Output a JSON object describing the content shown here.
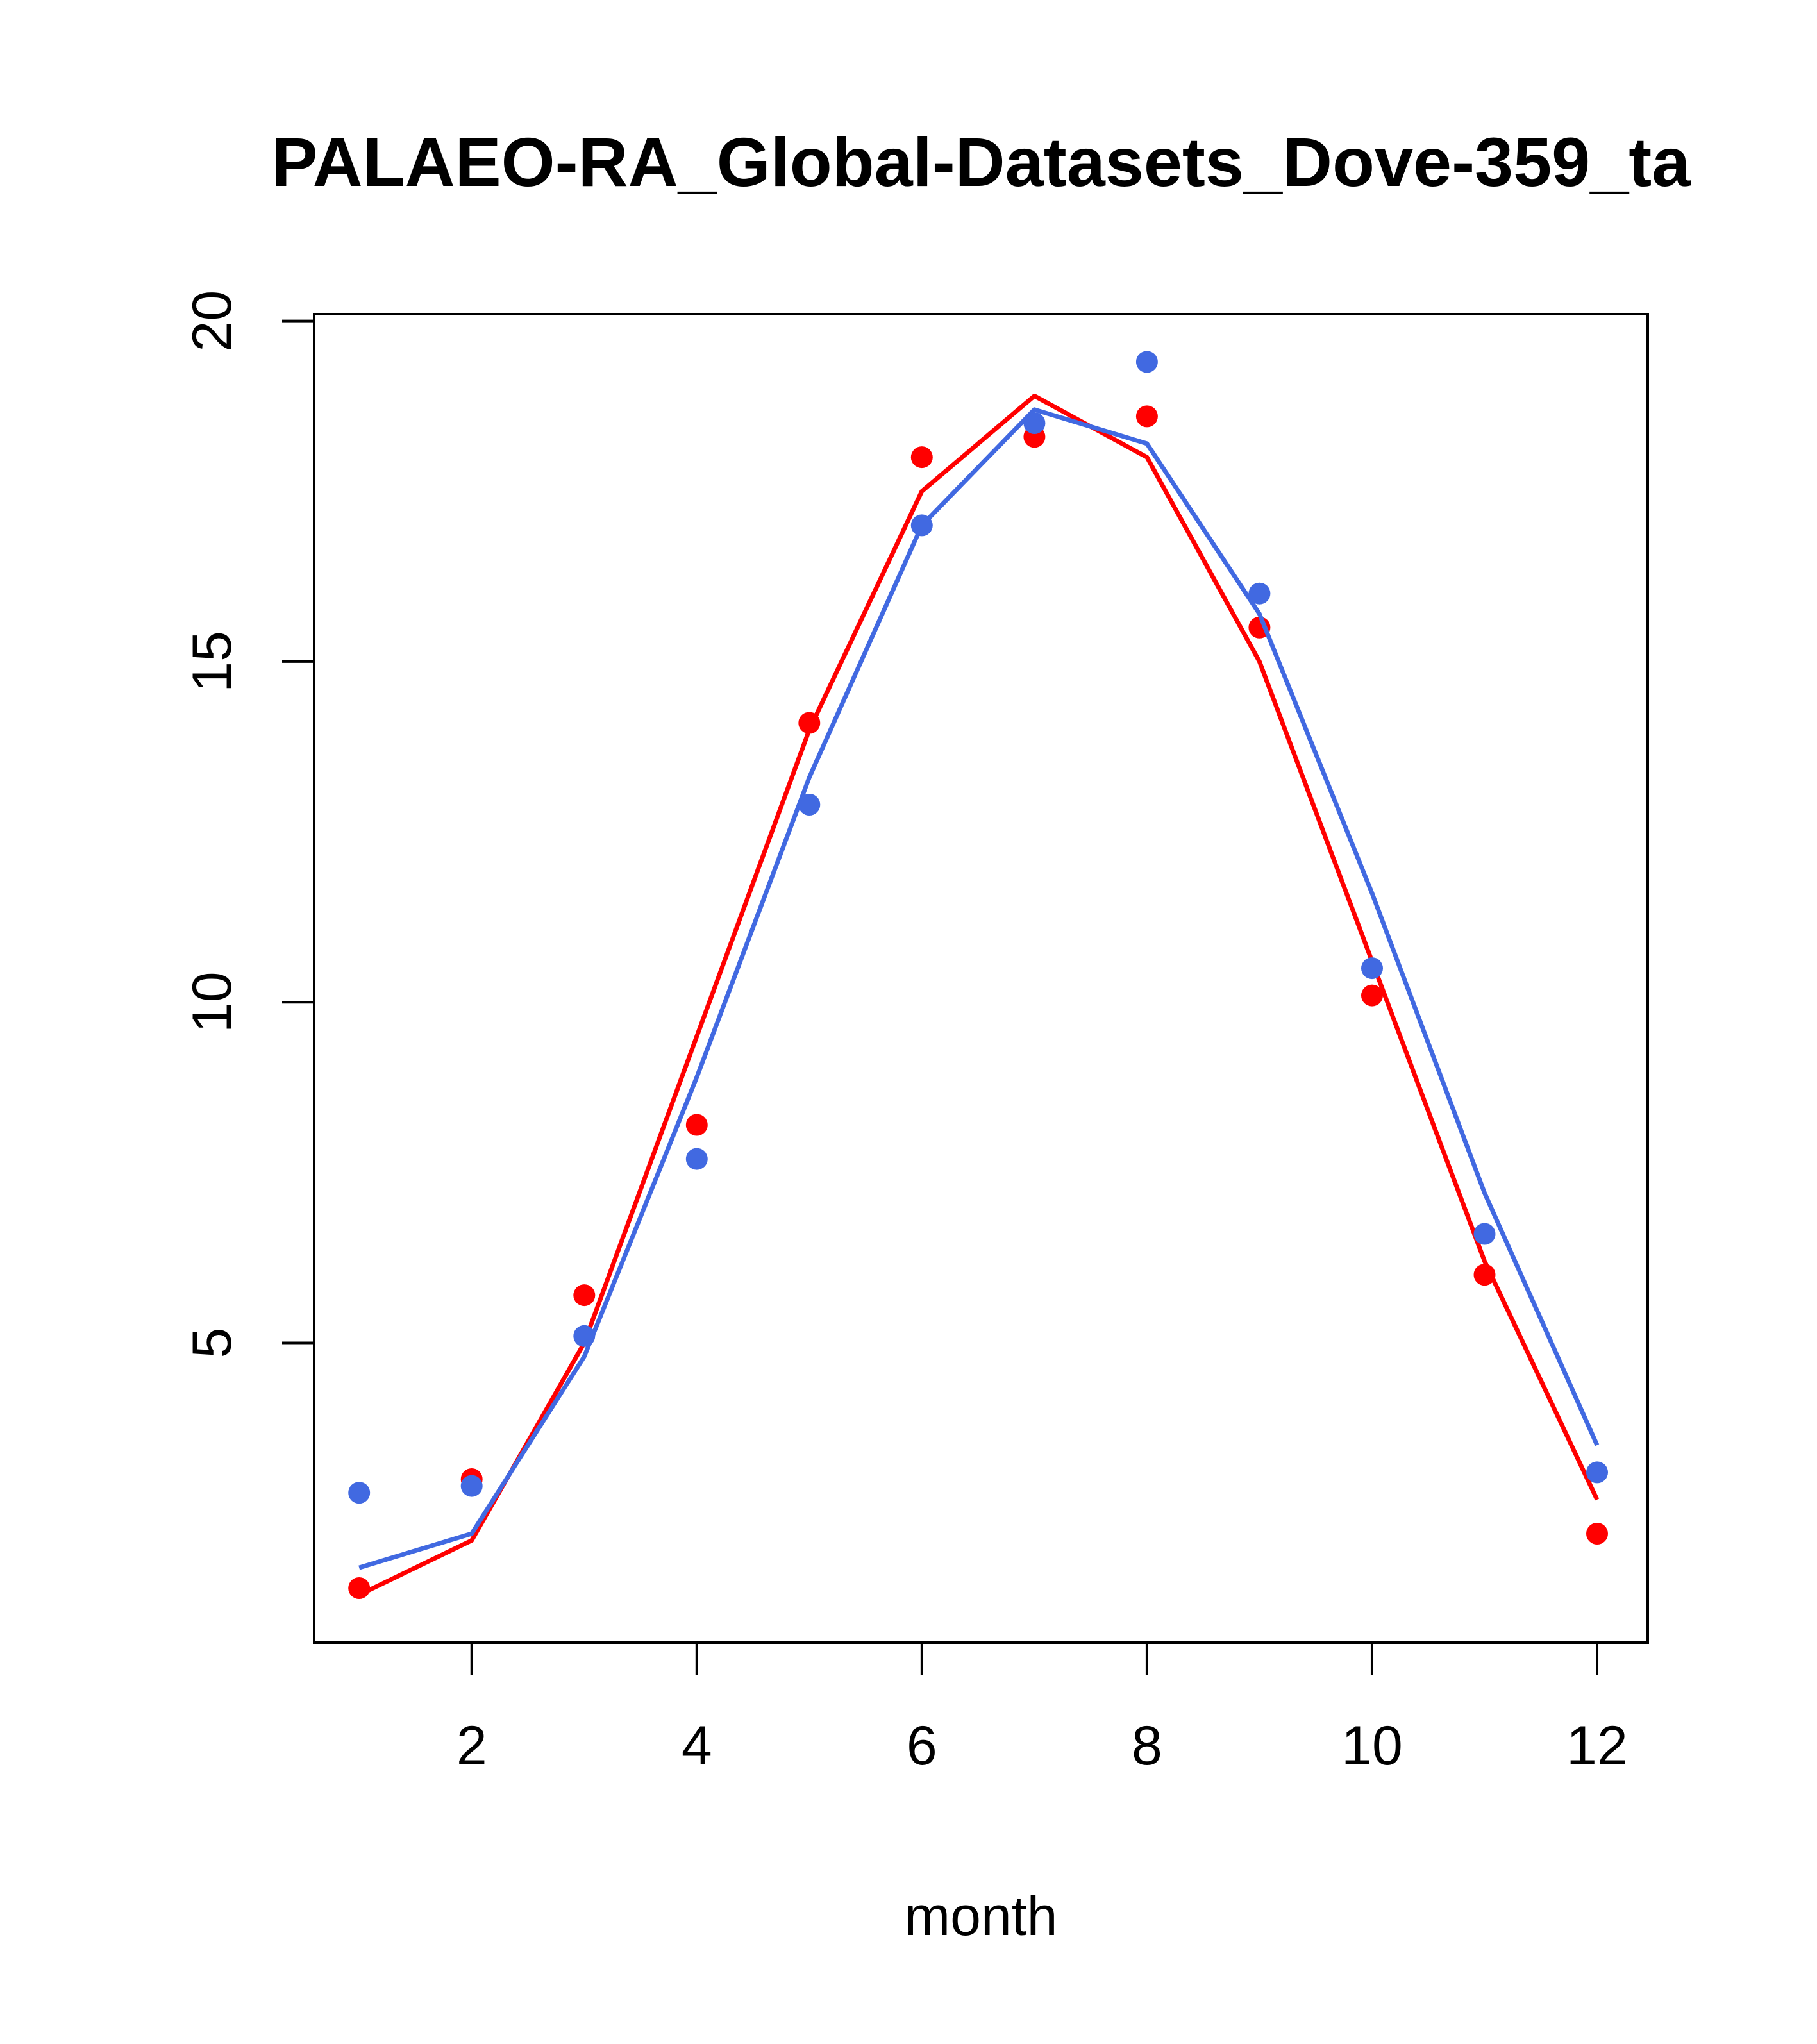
{
  "chart_data": {
    "type": "line",
    "title": "PALAEO-RA_Global-Datasets_Dove-359_ta",
    "xlabel": "month",
    "ylabel": "",
    "xlim": [
      0.6,
      12.45
    ],
    "ylim": [
      0.6,
      20.1
    ],
    "x_ticks": [
      2,
      4,
      6,
      8,
      10,
      12
    ],
    "y_ticks": [
      5,
      10,
      15,
      20
    ],
    "grid": false,
    "legend": "none",
    "x": [
      1,
      2,
      3,
      4,
      5,
      6,
      7,
      8,
      9,
      10,
      11,
      12
    ],
    "series": [
      {
        "color": "#ff0000",
        "line": [
          1.3,
          2.1,
          5.0,
          9.5,
          14.0,
          17.5,
          18.9,
          18.0,
          15.0,
          10.6,
          6.2,
          2.7
        ],
        "points": [
          1.4,
          3.0,
          5.7,
          8.2,
          14.1,
          18.0,
          18.3,
          18.6,
          15.5,
          10.1,
          6.0,
          2.2
        ]
      },
      {
        "color": "#4169e1",
        "line": [
          1.7,
          2.2,
          4.8,
          8.9,
          13.3,
          17.0,
          18.7,
          18.2,
          15.7,
          11.6,
          7.2,
          3.5
        ],
        "points": [
          2.8,
          2.9,
          5.1,
          7.7,
          12.9,
          17.0,
          18.5,
          19.4,
          16.0,
          10.5,
          6.6,
          3.1
        ]
      }
    ]
  }
}
